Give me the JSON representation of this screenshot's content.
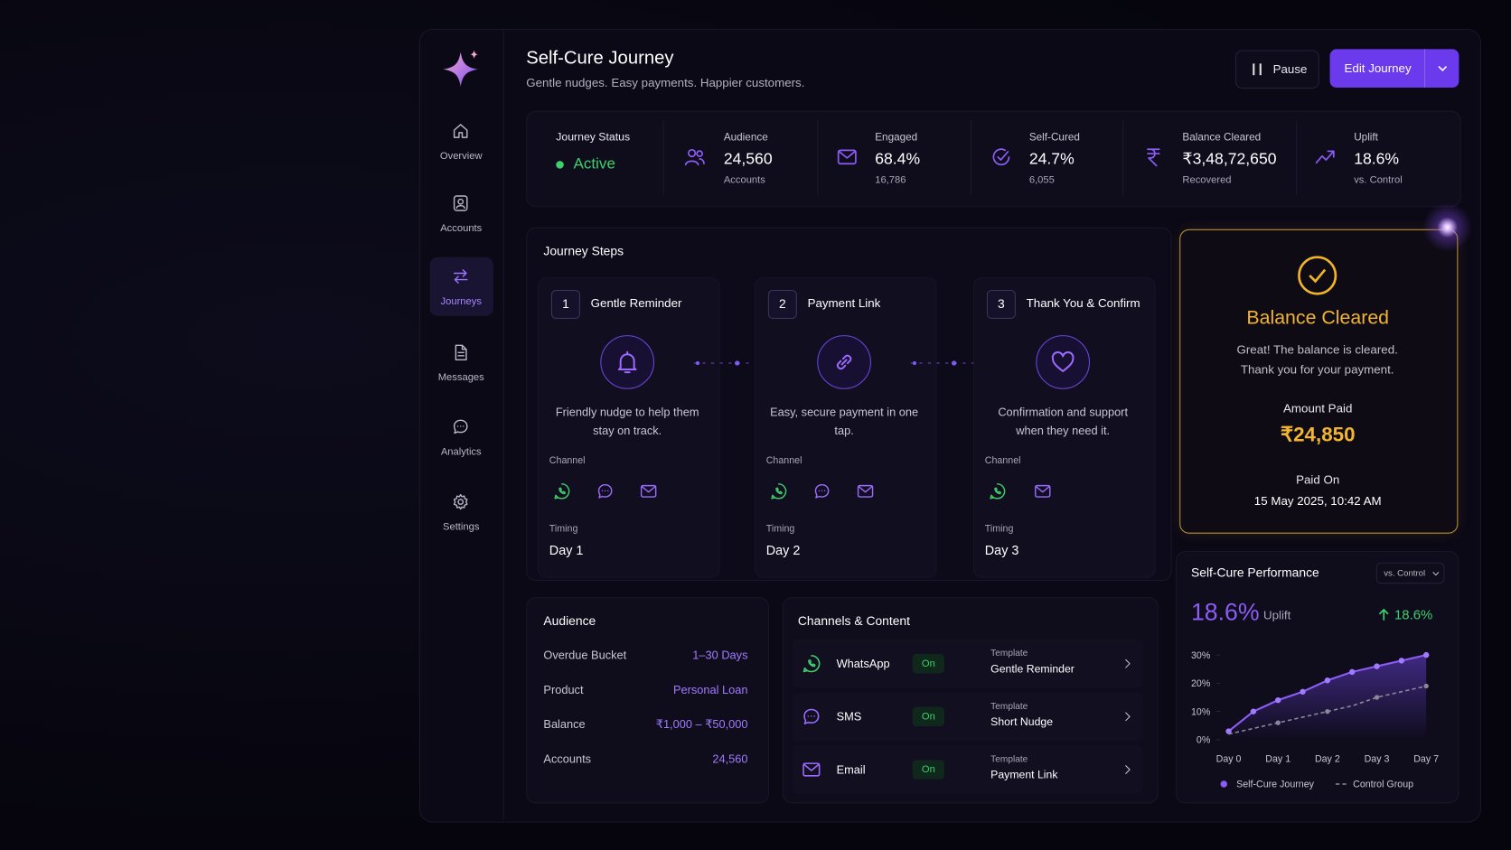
{
  "sidebar": {
    "nav": [
      "Overview",
      "Accounts",
      "Journeys",
      "Messages",
      "Analytics",
      "Settings"
    ]
  },
  "header": {
    "title": "Self-Cure Journey",
    "subtitle": "Gentle nudges. Easy payments. Happier customers.",
    "pause": "Pause",
    "edit": "Edit Journey"
  },
  "stats": {
    "status_label": "Journey Status",
    "status": "Active",
    "items": [
      {
        "label": "Audience",
        "value": "24,560",
        "sub": "Accounts"
      },
      {
        "label": "Engaged",
        "value": "68.4%",
        "sub": "16,786"
      },
      {
        "label": "Self-Cured",
        "value": "24.7%",
        "sub": "6,055"
      },
      {
        "label": "Balance Cleared",
        "value": "₹3,48,72,650",
        "sub": "Recovered"
      },
      {
        "label": "Uplift",
        "value": "18.6%",
        "sub": "vs. Control"
      }
    ]
  },
  "steps": {
    "title": "Journey Steps",
    "items": [
      {
        "number": 1,
        "name": "Gentle Reminder",
        "description": "Friendly nudge to help them stay on track.",
        "channel_label": "Channel",
        "timing_label": "Timing",
        "timing": "Day 1"
      },
      {
        "number": 2,
        "name": "Payment Link",
        "description": "Easy, secure payment in one tap.",
        "channel_label": "Channel",
        "timing_label": "Timing",
        "timing": "Day 2"
      },
      {
        "number": 3,
        "name": "Thank You & Confirm",
        "description": "Confirmation and support when they need it.",
        "channel_label": "Channel",
        "timing_label": "Timing",
        "timing": "Day 3"
      }
    ]
  },
  "balance": {
    "title": "Balance Cleared",
    "message": "Great! The balance is cleared. Thank you for your payment.",
    "amount_label": "Amount Paid",
    "amount": "₹24,850",
    "paid_on_label": "Paid On",
    "paid_on": "15 May 2025, 10:42 AM"
  },
  "audience": {
    "title": "Audience",
    "rows": [
      [
        "Overdue Bucket",
        "1–30 Days"
      ],
      [
        "Product",
        "Personal Loan"
      ],
      [
        "Balance",
        "₹1,000 – ₹50,000"
      ],
      [
        "Accounts",
        "24,560"
      ]
    ]
  },
  "channels": {
    "title": "Channels & Content",
    "rows": [
      {
        "name": "WhatsApp",
        "status": "On",
        "template_label": "Template",
        "template": "Gentle Reminder"
      },
      {
        "name": "SMS",
        "status": "On",
        "template_label": "Template",
        "template": "Short Nudge"
      },
      {
        "name": "Email",
        "status": "On",
        "template_label": "Template",
        "template": "Payment Link"
      }
    ]
  },
  "performance": {
    "title": "Self-Cure Performance",
    "filter": "vs. Control",
    "uplift": "18.6%",
    "uplift_label": "Uplift",
    "change": "18.6%"
  },
  "chart_data": {
    "type": "line",
    "categories": [
      "Day 0",
      null,
      "Day 1",
      null,
      "Day 2",
      null,
      "Day 3",
      null,
      "Day 7"
    ],
    "series": [
      {
        "name": "Self-Cure Journey",
        "color": "#8b5cf6",
        "values": [
          3,
          10,
          14,
          17,
          21,
          24,
          26,
          28,
          30
        ]
      },
      {
        "name": "Control Group",
        "color": "#8a8898",
        "values": [
          2,
          4,
          6,
          8,
          10,
          12,
          15,
          17,
          19
        ]
      }
    ],
    "ylim": [
      0,
      30
    ],
    "yticks": [
      {
        "value": 0,
        "label": "0%"
      },
      {
        "value": 10,
        "label": "10%"
      },
      {
        "value": 20,
        "label": "20%"
      },
      {
        "value": 30,
        "label": "30%"
      }
    ]
  }
}
